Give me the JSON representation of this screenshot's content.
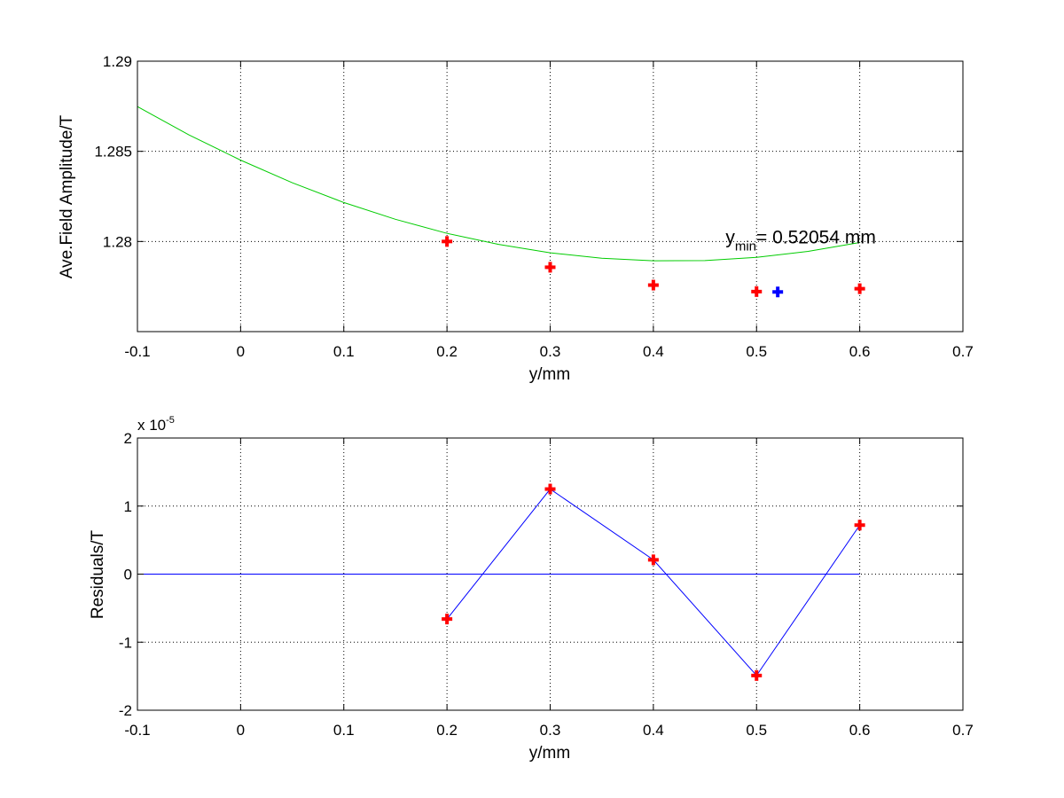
{
  "chart_data": [
    {
      "type": "line",
      "xlabel": "y/mm",
      "ylabel": "Ave.Field Amplitude/T",
      "xlim": [
        -0.1,
        0.7
      ],
      "ylim": [
        1.275,
        1.29
      ],
      "xticks": [
        -0.1,
        0,
        0.1,
        0.2,
        0.3,
        0.4,
        0.5,
        0.6,
        0.7
      ],
      "xtick_labels": [
        "-0.1",
        "0",
        "0.1",
        "0.2",
        "0.3",
        "0.4",
        "0.5",
        "0.6",
        "0.7"
      ],
      "yticks": [
        1.28,
        1.285,
        1.29
      ],
      "ytick_labels": [
        "1.28",
        "1.285",
        "1.29"
      ],
      "grid": true,
      "series": [
        {
          "kind": "fit-curve",
          "color": "#00cc00",
          "x": [
            -0.1,
            -0.05,
            0,
            0.05,
            0.1,
            0.15,
            0.2,
            0.25,
            0.3,
            0.35,
            0.4,
            0.45,
            0.5,
            0.55,
            0.6
          ],
          "y": [
            1.28748,
            1.28591,
            1.28451,
            1.28326,
            1.28216,
            1.28123,
            1.28045,
            1.27984,
            1.27937,
            1.27907,
            1.27893,
            1.27894,
            1.27912,
            1.27945,
            1.27994
          ]
        },
        {
          "kind": "measured",
          "color": "#ff0000",
          "marker": "plus",
          "x": [
            0.2,
            0.3,
            0.4,
            0.5,
            0.6
          ],
          "y": [
            1.28,
            1.27857,
            1.27758,
            1.27722,
            1.27738
          ]
        },
        {
          "kind": "minimum",
          "color": "#0000ff",
          "marker": "plus",
          "x": [
            0.52054
          ],
          "y": [
            1.2772
          ]
        }
      ],
      "annotation": {
        "base": "y",
        "subscript": "min",
        "text": "= 0.52054 mm",
        "at": [
          0.47,
          1.2799
        ]
      }
    },
    {
      "type": "line",
      "xlabel": "y/mm",
      "ylabel": "Residuals/T",
      "scale_label": "x 10",
      "scale_exponent": "-5",
      "xlim": [
        -0.1,
        0.7
      ],
      "ylim": [
        -2,
        2
      ],
      "xticks": [
        -0.1,
        0,
        0.1,
        0.2,
        0.3,
        0.4,
        0.5,
        0.6,
        0.7
      ],
      "xtick_labels": [
        "-0.1",
        "0",
        "0.1",
        "0.2",
        "0.3",
        "0.4",
        "0.5",
        "0.6",
        "0.7"
      ],
      "yticks": [
        -2,
        -1,
        0,
        1,
        2
      ],
      "ytick_labels": [
        "-2",
        "-1",
        "0",
        "1",
        "2"
      ],
      "grid": true,
      "series": [
        {
          "kind": "zero-line",
          "color": "#0000ff",
          "x": [
            -0.1,
            0.6
          ],
          "y": [
            0,
            0
          ]
        },
        {
          "kind": "residuals",
          "color": "#0000ff",
          "marker_color": "#ff0000",
          "marker": "plus",
          "x": [
            0.2,
            0.3,
            0.4,
            0.5,
            0.6
          ],
          "y": [
            -0.66,
            1.25,
            0.21,
            -1.49,
            0.72
          ]
        }
      ]
    }
  ]
}
